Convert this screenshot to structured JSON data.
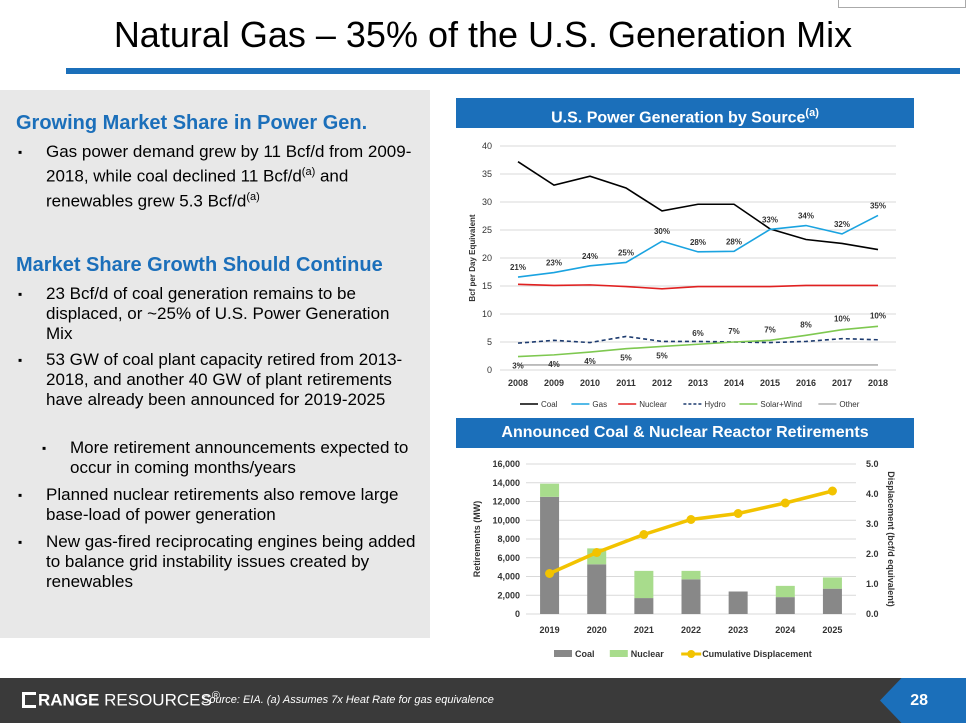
{
  "title": "Natural Gas – 35% of the U.S. Generation Mix",
  "left": {
    "section1": {
      "heading": "Growing Market Share in Power Gen.",
      "bullets": [
        {
          "text": "Gas power demand grew by 11 Bcf/d from 2009-2018, while coal declined 11 Bcf/d",
          "sup": "(a)",
          "text2": " and renewables grew 5.3 Bcf/d",
          "sup2": "(a)"
        }
      ]
    },
    "section2": {
      "heading": "Market Share Growth Should Continue",
      "bullets": [
        "23 Bcf/d of coal generation remains to be displaced, or ~25% of U.S. Power Generation Mix",
        "53 GW of coal plant capacity retired from 2013-2018, and another 40 GW of plant retirements have already been announced for 2019-2025",
        "More retirement announcements expected to occur in coming months/years",
        "Planned nuclear retirements also remove large base-load of power generation",
        "New gas-fired reciprocating engines being added to balance grid instability issues created by renewables"
      ]
    }
  },
  "bullet_mark": "▪",
  "chart_data": [
    {
      "type": "line",
      "title": "U.S. Power Generation by Source",
      "title_sup": "(a)",
      "ylabel": "Bcf per Day Equivalent",
      "ylim": [
        0,
        40
      ],
      "yticks": [
        "0",
        "5",
        "10",
        "15",
        "20",
        "25",
        "30",
        "35",
        "40"
      ],
      "x": [
        "2008",
        "2009",
        "2010",
        "2011",
        "2012",
        "2013",
        "2014",
        "2015",
        "2016",
        "2017",
        "2018"
      ],
      "series": [
        {
          "name": "Coal",
          "color": "#000000",
          "values": [
            37.2,
            33.0,
            34.6,
            32.5,
            28.4,
            29.6,
            29.6,
            25.2,
            23.3,
            22.6,
            21.5
          ]
        },
        {
          "name": "Gas",
          "color": "#1aa3e0",
          "values": [
            16.6,
            17.4,
            18.6,
            19.2,
            23.0,
            21.1,
            21.2,
            25.1,
            25.8,
            24.3,
            27.6
          ]
        },
        {
          "name": "Nuclear",
          "color": "#e02020",
          "values": [
            15.3,
            15.1,
            15.2,
            14.9,
            14.5,
            14.9,
            14.9,
            14.9,
            15.1,
            15.1,
            15.1
          ]
        },
        {
          "name": "Hydro",
          "color": "#1c3a6e",
          "dashed": true,
          "values": [
            4.8,
            5.3,
            4.9,
            6.0,
            5.1,
            5.1,
            5.0,
            4.9,
            5.1,
            5.6,
            5.4
          ]
        },
        {
          "name": "Solar+Wind",
          "color": "#7ec850",
          "values": [
            2.4,
            2.7,
            3.2,
            3.8,
            4.2,
            4.6,
            5.0,
            5.3,
            6.2,
            7.2,
            7.8
          ]
        },
        {
          "name": "Other",
          "color": "#b0b0b0",
          "values": [
            0.9,
            0.9,
            0.9,
            0.9,
            0.9,
            0.9,
            0.9,
            0.9,
            0.9,
            0.9,
            0.9
          ]
        }
      ],
      "gas_labels": [
        "21%",
        "23%",
        "24%",
        "25%",
        "30%",
        "28%",
        "28%",
        "33%",
        "34%",
        "32%",
        "35%"
      ],
      "renew_labels": [
        "3%",
        "4%",
        "4%",
        "5%",
        "5%",
        "6%",
        "7%",
        "7%",
        "8%",
        "10%",
        "10%"
      ],
      "legend": [
        "Coal",
        "Gas",
        "Nuclear",
        "Hydro",
        "Solar+Wind",
        "Other"
      ]
    },
    {
      "type": "bar",
      "title": "Announced Coal & Nuclear Reactor Retirements",
      "ylabel": "Retirements (MW)",
      "y2label": "Displacement (bcf/d equivalent)",
      "ylim": [
        0,
        16000
      ],
      "yticks": [
        "0",
        "2,000",
        "4,000",
        "6,000",
        "8,000",
        "10,000",
        "12,000",
        "14,000",
        "16,000"
      ],
      "y2lim": [
        0,
        5.0
      ],
      "y2ticks": [
        "0.0",
        "1.0",
        "2.0",
        "3.0",
        "4.0",
        "5.0"
      ],
      "categories": [
        "2019",
        "2020",
        "2021",
        "2022",
        "2023",
        "2024",
        "2025"
      ],
      "series": [
        {
          "name": "Coal",
          "color": "#888888",
          "values": [
            12500,
            5300,
            1700,
            3700,
            2400,
            1800,
            2700
          ]
        },
        {
          "name": "Nuclear",
          "color": "#a8dc8c",
          "values": [
            1400,
            1700,
            2900,
            900,
            0,
            1200,
            1200
          ]
        },
        {
          "name": "Cumulative Displacement",
          "color": "#f2c300",
          "values": [
            1.35,
            2.05,
            2.65,
            3.15,
            3.35,
            3.7,
            4.1
          ]
        }
      ],
      "legend": [
        "Coal",
        "Nuclear",
        "Cumulative Displacement"
      ]
    }
  ],
  "footer": {
    "logo_bold": "RANGE",
    "logo_rest": " RESOURCES",
    "logo_mark": "®",
    "source": "Source: EIA. (a) Assumes 7x Heat Rate for gas equivalence",
    "page": "28"
  }
}
